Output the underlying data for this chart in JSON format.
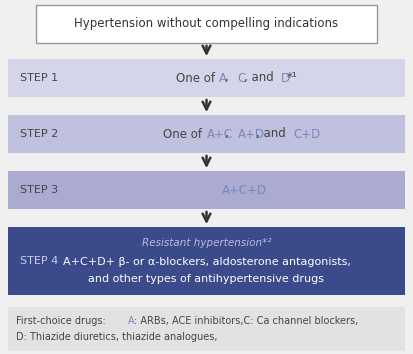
{
  "bg_color": "#f0f0f0",
  "title_text": "Hypertension without compelling indications",
  "title_box_bg": "#ffffff",
  "title_box_edge": "#999999",
  "arrow_color": "#333333",
  "highlight_color": "#7788bb",
  "normal_text_color": "#444444",
  "step_label_dark_color": "#ccccee",
  "steps": [
    {
      "label": "STEP 1",
      "bg": "#d5d5ea",
      "parts": [
        [
          "One of ",
          false,
          "#444444"
        ],
        [
          "A",
          false,
          "#7788bb"
        ],
        [
          ", ",
          false,
          "#444444"
        ],
        [
          "C",
          false,
          "#7788bb"
        ],
        [
          ", and ",
          false,
          "#444444"
        ],
        [
          "D",
          false,
          "#7788bb"
        ],
        [
          "*¹",
          false,
          "#444444"
        ]
      ],
      "dark": false
    },
    {
      "label": "STEP 2",
      "bg": "#c0c0df",
      "parts": [
        [
          "One of ",
          false,
          "#444444"
        ],
        [
          "A+C",
          false,
          "#7788bb"
        ],
        [
          ", ",
          false,
          "#444444"
        ],
        [
          "A+D",
          false,
          "#7788bb"
        ],
        [
          ", and ",
          false,
          "#444444"
        ],
        [
          "C+D",
          false,
          "#7788bb"
        ]
      ],
      "dark": false
    },
    {
      "label": "STEP 3",
      "bg": "#ababd2",
      "parts": [
        [
          "A+C+D",
          false,
          "#7788bb"
        ]
      ],
      "dark": false
    },
    {
      "label": "STEP 4",
      "bg": "#3a4a8a",
      "subtitle": "Resistant hypertension*²",
      "line1": "A+C+D+ β- or α-blockers, aldosterone antagonists,",
      "line2": "and other types of antihypertensive drugs",
      "dark": true
    }
  ],
  "footnote_bg": "#e2e2e2",
  "footnote_line1_parts": [
    [
      "First-choice drugs: ",
      false,
      "#444444"
    ],
    [
      "A",
      false,
      "#7788bb"
    ],
    [
      ": ARBs, ACE inhibitors,C: Ca channel blockers,",
      false,
      "#444444"
    ]
  ],
  "footnote_line2": "D: Thiazide diuretics, thiazide analogues,",
  "footnote_text_color": "#444444"
}
